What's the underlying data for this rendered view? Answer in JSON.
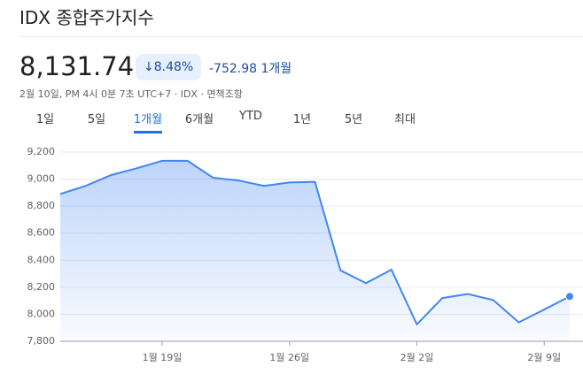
{
  "header": {
    "title": "IDX 종합주가지수",
    "price": "8,131.74",
    "change_percent": "8.48%",
    "change_value": "-752.98",
    "change_period": "1개월",
    "timestamp": "2월 10일, PM 4시 0분 7초 UTC+7 · IDX · 면책조항"
  },
  "tabs": [
    "1일",
    "5일",
    "1개월",
    "6개월",
    "YTD",
    "1년",
    "5년",
    "최대"
  ],
  "active_tab": "1개월",
  "chart_data": {
    "type": "area",
    "color": "#4285f4",
    "categories": [
      null,
      null,
      null,
      null,
      "1월 19일",
      null,
      null,
      null,
      null,
      "1월 26일",
      null,
      null,
      null,
      null,
      "2월 2일",
      null,
      null,
      null,
      null,
      "2월 9일",
      null
    ],
    "values": [
      8890,
      8950,
      9030,
      9080,
      9135,
      9135,
      9010,
      8990,
      8950,
      8975,
      8980,
      8325,
      8230,
      8330,
      7925,
      8120,
      8150,
      8105,
      7940,
      8035,
      8131.74
    ],
    "ylim": [
      7800,
      9200
    ],
    "yticks": [
      {
        "value": 7800,
        "label": "7,800"
      },
      {
        "value": 8000,
        "label": "8,000"
      },
      {
        "value": 8200,
        "label": "8,200"
      },
      {
        "value": 8400,
        "label": "8,400"
      },
      {
        "value": 8600,
        "label": "8,600"
      },
      {
        "value": 8800,
        "label": "8,800"
      },
      {
        "value": 9000,
        "label": "9,000"
      },
      {
        "value": 9200,
        "label": "9,200"
      }
    ],
    "grid": true
  }
}
